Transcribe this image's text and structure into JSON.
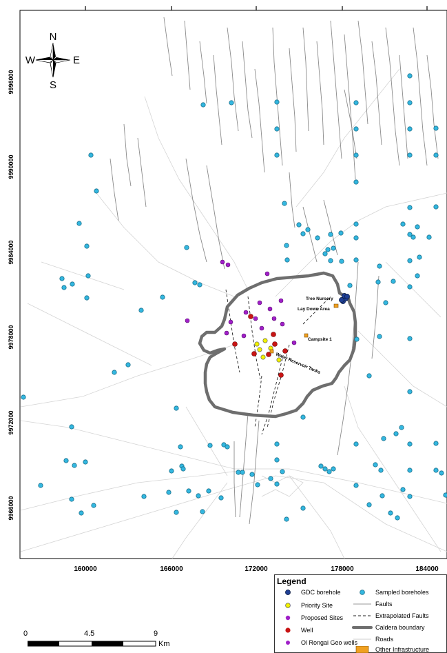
{
  "compass": {
    "n": "N",
    "s": "S",
    "e": "E",
    "w": "W"
  },
  "axis": {
    "y_ticks": [
      "9996000",
      "9990000",
      "9984000",
      "9978000",
      "9972000",
      "9966000"
    ],
    "x_ticks": [
      "160000",
      "166000",
      "172000",
      "178000",
      "184000"
    ]
  },
  "labels": {
    "tree_nursery": "Tree Nursery",
    "lay_down_area": "Lay Down Area",
    "campsite": "Campsite 1",
    "water_tanks": "Water Reservoir Tanks"
  },
  "legend": {
    "title": "Legend",
    "items": [
      {
        "label": "GDC borehole",
        "symbol": "gdc"
      },
      {
        "label": "Priority Site",
        "symbol": "priority"
      },
      {
        "label": "Proposed Sites",
        "symbol": "proposed"
      },
      {
        "label": "Well",
        "symbol": "well"
      },
      {
        "label": "Ol Rongai Geo wells",
        "symbol": "geo"
      },
      {
        "label": "Sampled boreholes",
        "symbol": "sampled"
      },
      {
        "label": "Faults",
        "symbol": "fault"
      },
      {
        "label": "Extrapolated Faults",
        "symbol": "extrap"
      },
      {
        "label": "Caldera boundary",
        "symbol": "caldera"
      },
      {
        "label": "Roads",
        "symbol": "road"
      },
      {
        "label": "Other Infrastructure",
        "symbol": "infra"
      }
    ]
  },
  "scale_bar": {
    "ticks": [
      "0",
      "4.5",
      "9"
    ],
    "unit": "Km"
  },
  "colors": {
    "sampled": "#33b7e0",
    "gdc": "#1f3f94",
    "priority": "#f2f200",
    "proposed": "#a020c8",
    "well": "#c81414",
    "infra": "#f0a020",
    "caldera": "#6e6e6e"
  }
}
